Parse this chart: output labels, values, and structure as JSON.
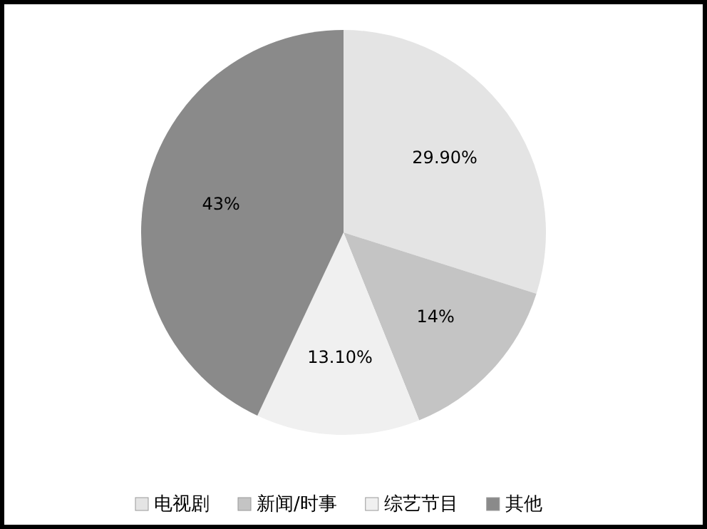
{
  "chart_data": {
    "type": "pie",
    "categories": [
      "电视剧",
      "新闻/时事",
      "综艺节目",
      "其他"
    ],
    "values": [
      29.9,
      14,
      13.1,
      43
    ],
    "value_labels": [
      "29.90%",
      "14%",
      "13.10%",
      "43%"
    ],
    "colors": [
      "#e4e4e4",
      "#c4c4c4",
      "#f0f0f0",
      "#8a8a8a"
    ],
    "legend": "bottom"
  }
}
